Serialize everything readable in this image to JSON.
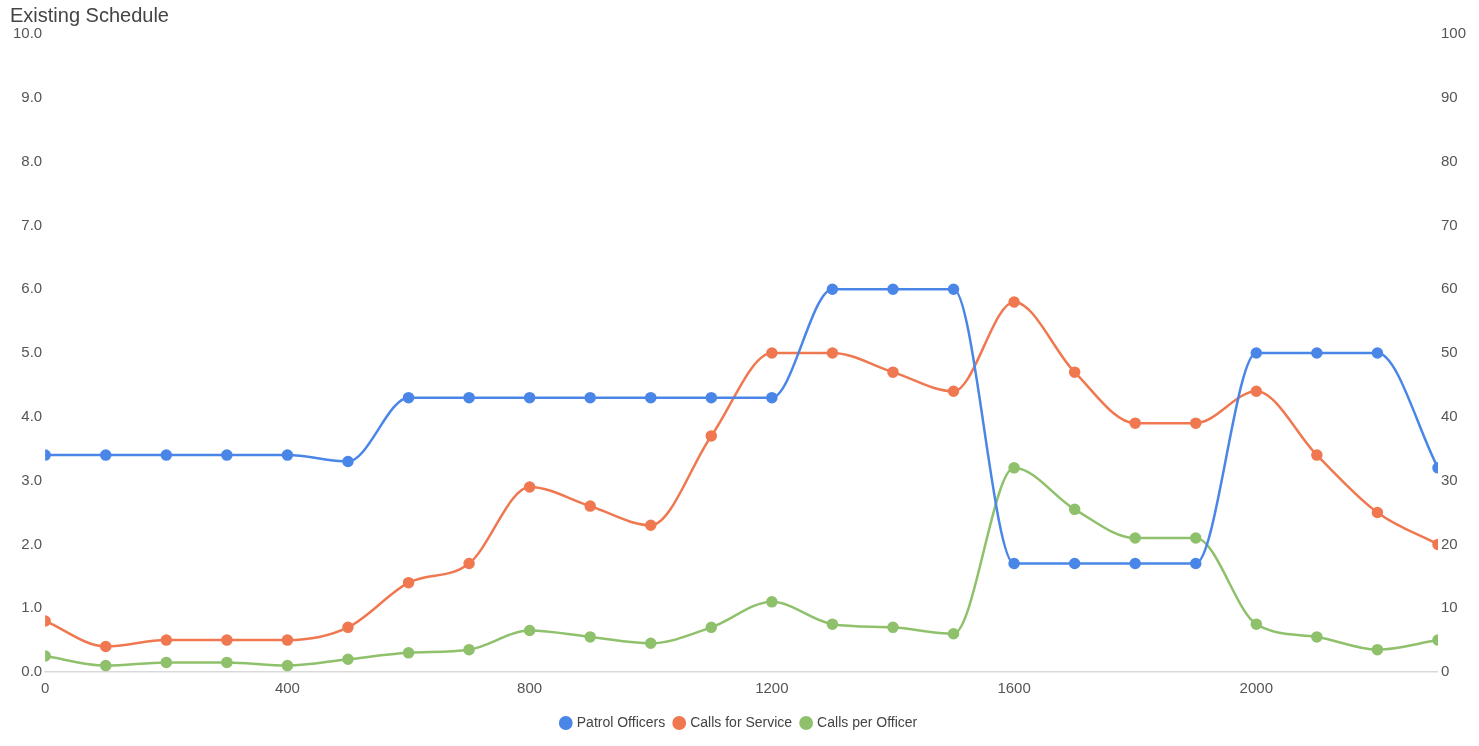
{
  "chart_data": {
    "type": "line",
    "title": "Existing Schedule",
    "x": [
      0,
      100,
      200,
      300,
      400,
      500,
      600,
      700,
      800,
      900,
      1000,
      1100,
      1200,
      1300,
      1400,
      1500,
      1600,
      1700,
      1800,
      1900,
      2000,
      2100,
      2200,
      2300
    ],
    "xlim": [
      0,
      2300
    ],
    "xticks": [
      0,
      400,
      800,
      1200,
      1600,
      2000
    ],
    "ylim": [
      0,
      10
    ],
    "yticks": [
      {
        "value": 0,
        "label": "0.0"
      },
      {
        "value": 1,
        "label": "1.0"
      },
      {
        "value": 2,
        "label": "2.0"
      },
      {
        "value": 3,
        "label": "3.0"
      },
      {
        "value": 4,
        "label": "4.0"
      },
      {
        "value": 5,
        "label": "5.0"
      },
      {
        "value": 6,
        "label": "6.0"
      },
      {
        "value": 7,
        "label": "7.0"
      },
      {
        "value": 8,
        "label": "8.0"
      },
      {
        "value": 9,
        "label": "9.0"
      },
      {
        "value": 10,
        "label": "10.0"
      }
    ],
    "y2lim": [
      0,
      100
    ],
    "y2ticks": [
      0,
      10,
      20,
      30,
      40,
      50,
      60,
      70,
      80,
      90,
      100
    ],
    "series": [
      {
        "name": "Patrol Officers",
        "color": "#4a86e8",
        "values": [
          3.4,
          3.4,
          3.4,
          3.4,
          3.4,
          3.3,
          4.3,
          4.3,
          4.3,
          4.3,
          4.3,
          4.3,
          4.3,
          6.0,
          6.0,
          6.0,
          1.7,
          1.7,
          1.7,
          1.7,
          5.0,
          5.0,
          5.0,
          3.2
        ]
      },
      {
        "name": "Calls for Service",
        "color": "#f07850",
        "values": [
          0.8,
          0.4,
          0.5,
          0.5,
          0.5,
          0.7,
          1.4,
          1.7,
          2.9,
          2.6,
          2.3,
          3.7,
          5.0,
          5.0,
          4.7,
          4.4,
          5.8,
          4.7,
          3.9,
          3.9,
          4.4,
          3.4,
          2.5,
          2.0
        ]
      },
      {
        "name": "Calls per Officer",
        "color": "#8fc06b",
        "values": [
          0.25,
          0.1,
          0.15,
          0.15,
          0.1,
          0.2,
          0.3,
          0.35,
          0.65,
          0.55,
          0.45,
          0.7,
          1.1,
          0.75,
          0.7,
          0.6,
          3.2,
          2.55,
          2.1,
          2.1,
          0.75,
          0.55,
          0.35,
          0.5
        ]
      }
    ],
    "grid": false,
    "legend": "bottom",
    "marker": "circle",
    "line_style": "solid"
  }
}
